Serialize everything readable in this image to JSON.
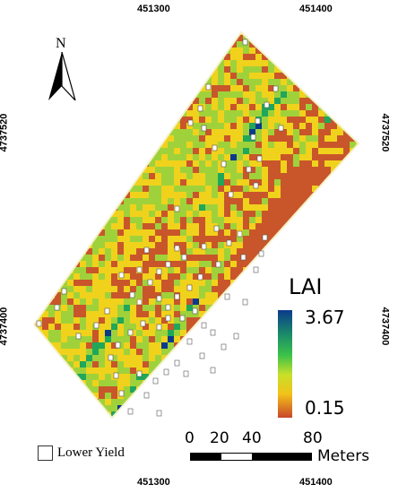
{
  "map": {
    "north_label": "N",
    "coords": {
      "top": [
        "451300",
        "451400"
      ],
      "bottom": [
        "451300",
        "451400"
      ],
      "left": [
        "4737520",
        "4737400"
      ],
      "right": [
        "4737520",
        "4737400"
      ]
    },
    "colors": {
      "high": "#0b3a8c",
      "mid_high": "#1fa75a",
      "mid": "#9fd23a",
      "mid_low": "#f0d21c",
      "low": "#c9562a",
      "marker_stroke": "#555555",
      "marker_fill": "#ffffff"
    }
  },
  "legend": {
    "title": "LAI",
    "max": "3.67",
    "min": "0.15",
    "lower_yield": "Lower Yield"
  },
  "scale_bar": {
    "ticks": [
      "0",
      "20",
      "40",
      "80"
    ],
    "unit": "Meters"
  }
}
